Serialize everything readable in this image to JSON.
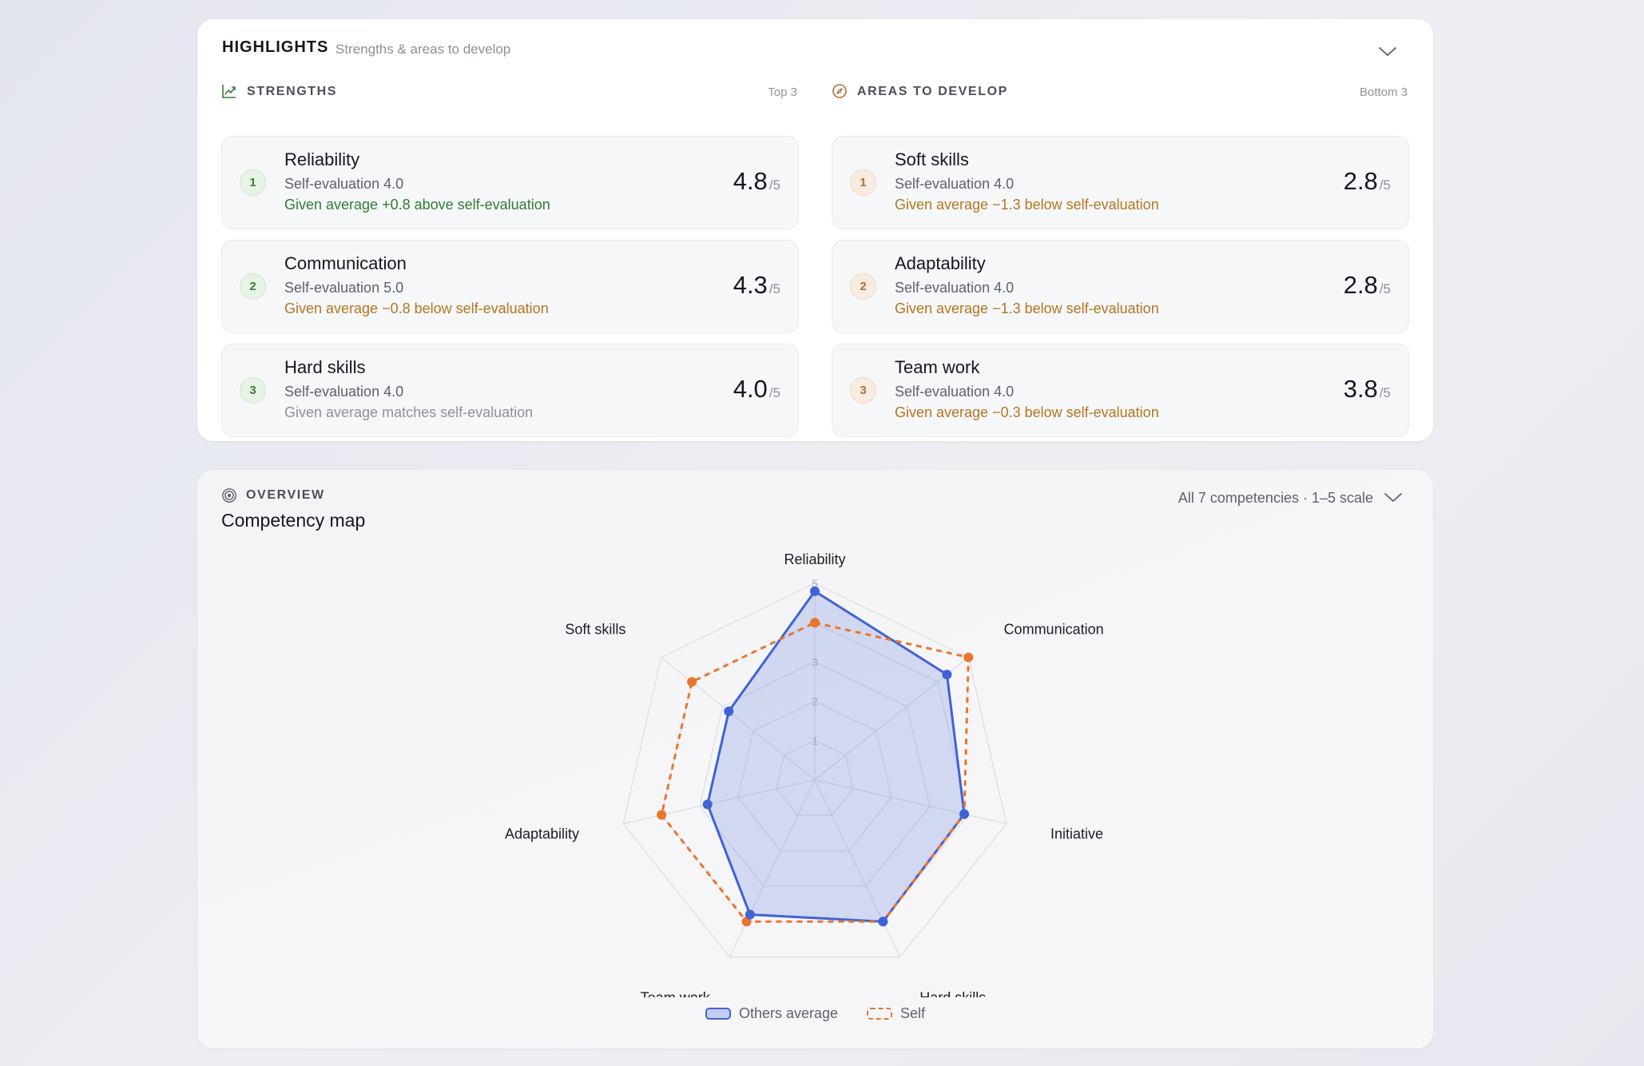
{
  "highlights": {
    "title": "HIGHLIGHTS",
    "subtitle": "Strengths & areas to develop",
    "strengths": {
      "label": "STRENGTHS",
      "meta": "Top 3",
      "items": [
        {
          "rank": "1",
          "name": "Reliability",
          "self": "Self-evaluation 4.0",
          "delta": "Given average +0.8 above self-evaluation",
          "tone": "up",
          "score": "4.8",
          "max": "/5"
        },
        {
          "rank": "2",
          "name": "Communication",
          "self": "Self-evaluation 5.0",
          "delta": "Given average −0.8 below self-evaluation",
          "tone": "down",
          "score": "4.3",
          "max": "/5"
        },
        {
          "rank": "3",
          "name": "Hard skills",
          "self": "Self-evaluation 4.0",
          "delta": "Given average matches self-evaluation",
          "tone": "same",
          "score": "4.0",
          "max": "/5"
        }
      ]
    },
    "develop": {
      "label": "AREAS TO DEVELOP",
      "meta": "Bottom 3",
      "items": [
        {
          "rank": "1",
          "name": "Soft skills",
          "self": "Self-evaluation 4.0",
          "delta": "Given average −1.3 below self-evaluation",
          "tone": "down",
          "score": "2.8",
          "max": "/5"
        },
        {
          "rank": "2",
          "name": "Adaptability",
          "self": "Self-evaluation 4.0",
          "delta": "Given average −1.3 below self-evaluation",
          "tone": "down",
          "score": "2.8",
          "max": "/5"
        },
        {
          "rank": "3",
          "name": "Team work",
          "self": "Self-evaluation 4.0",
          "delta": "Given average −0.3 below self-evaluation",
          "tone": "down",
          "score": "3.8",
          "max": "/5"
        }
      ]
    }
  },
  "overview": {
    "label": "OVERVIEW",
    "title": "Competency map",
    "meta": "All 7 competencies · 1–5 scale",
    "legend": {
      "others": "Others average",
      "self": "Self"
    }
  },
  "chart_data": {
    "type": "radar",
    "categories": [
      "Reliability",
      "Communication",
      "Initiative",
      "Hard skills",
      "Team work",
      "Adaptability",
      "Soft skills"
    ],
    "series": [
      {
        "name": "Others average",
        "values": [
          4.8,
          4.3,
          3.9,
          4.0,
          3.8,
          2.8,
          2.8
        ],
        "color": "#3f63d6"
      },
      {
        "name": "Self",
        "values": [
          4.0,
          5.0,
          3.9,
          4.0,
          4.0,
          4.0,
          4.0
        ],
        "color": "#e8762c"
      }
    ],
    "range": [
      0,
      5
    ],
    "rings": [
      1,
      2,
      3,
      4,
      5
    ],
    "ring_labels": [
      "1",
      "2",
      "3",
      "4",
      "5"
    ],
    "legend_position": "bottom"
  }
}
